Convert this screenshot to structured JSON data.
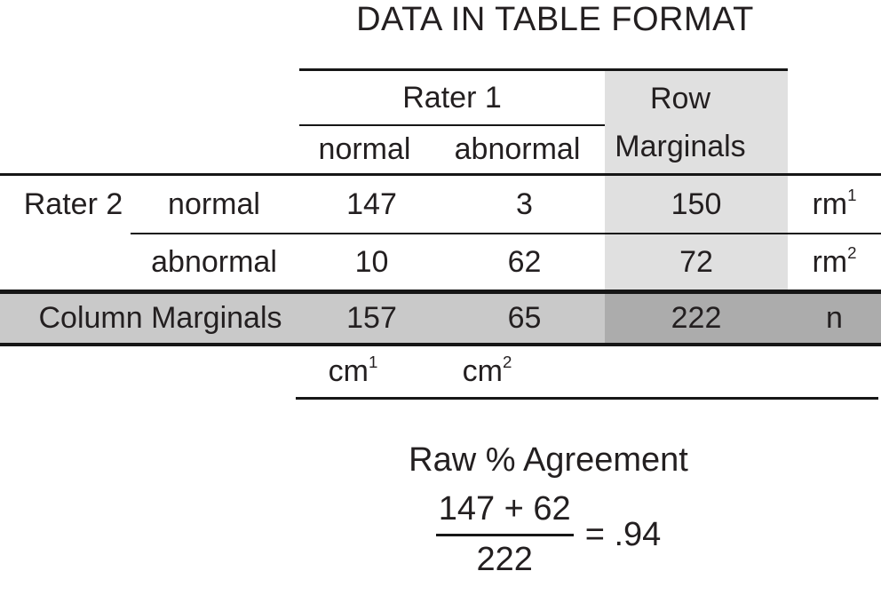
{
  "title": "DATA IN TABLE FORMAT",
  "colors": {
    "page_bg": "#ffffff",
    "text": "#231f20",
    "line": "#161616",
    "row_marginals_bg": "#e0e0e0",
    "column_marginals_bg": "#c9c9c9",
    "grand_total_bg": "#acacac"
  },
  "chart_data": {
    "type": "table",
    "title": "DATA IN TABLE FORMAT",
    "column_group_label": "Rater 1",
    "row_group_label": "Rater 2",
    "column_headers": [
      "normal",
      "abnormal"
    ],
    "row_marginals_header": [
      "Row",
      "Marginals"
    ],
    "rows": [
      {
        "label": "normal",
        "values": [
          147,
          3
        ],
        "row_marginal": 150,
        "tag_base": "rm",
        "tag_sup": "1"
      },
      {
        "label": "abnormal",
        "values": [
          10,
          62
        ],
        "row_marginal": 72,
        "tag_base": "rm",
        "tag_sup": "2"
      }
    ],
    "column_marginals": {
      "label": "Column Marginals",
      "values": [
        157,
        65
      ],
      "grand_total": 222,
      "tag": "n"
    },
    "column_tags": [
      {
        "base": "cm",
        "sup": "1"
      },
      {
        "base": "cm",
        "sup": "2"
      }
    ],
    "formula": {
      "heading": "Raw % Agreement",
      "numerator": "147 + 62",
      "denominator": "222",
      "result": "= .94"
    }
  }
}
